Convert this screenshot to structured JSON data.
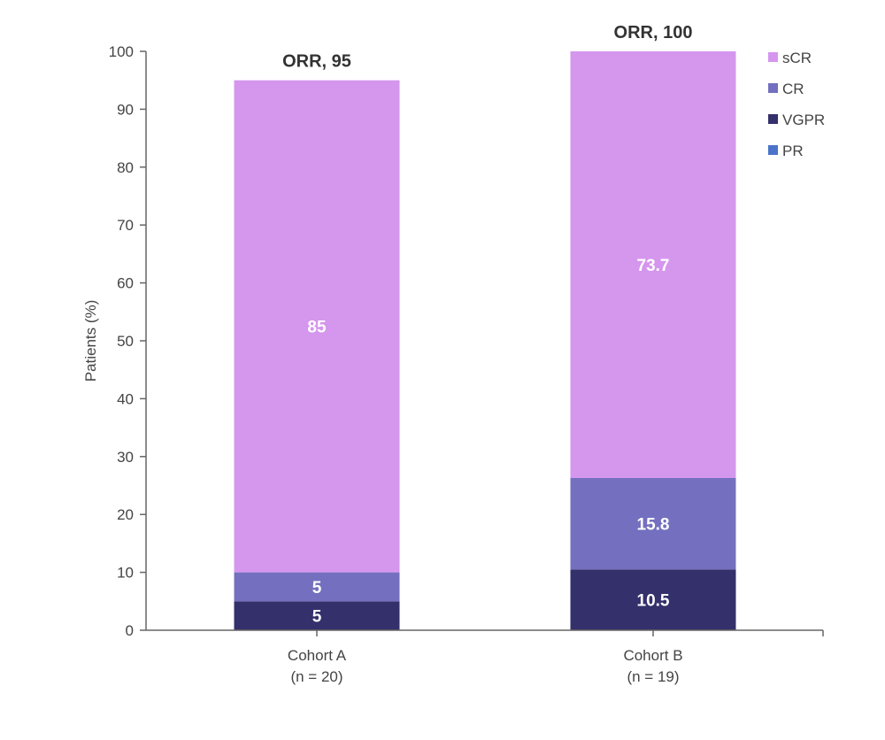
{
  "chart_data": {
    "type": "bar",
    "stacked": true,
    "title": "",
    "xlabel": "",
    "ylabel": "Patients (%)",
    "ylim": [
      0,
      100
    ],
    "yticks": [
      0,
      10,
      20,
      30,
      40,
      50,
      60,
      70,
      80,
      90,
      100
    ],
    "categories": [
      "Cohort A",
      "Cohort B"
    ],
    "category_sublabels": [
      "(n = 20)",
      "(n = 19)"
    ],
    "series": [
      {
        "name": "PR",
        "color": "#4a74c9",
        "values": [
          0,
          0
        ]
      },
      {
        "name": "VGPR",
        "color": "#34306b",
        "values": [
          5,
          10.5
        ]
      },
      {
        "name": "CR",
        "color": "#7470bf",
        "values": [
          5,
          15.8
        ]
      },
      {
        "name": "sCR",
        "color": "#d596ee",
        "values": [
          85,
          73.7
        ]
      }
    ],
    "legend_order": [
      "sCR",
      "CR",
      "VGPR",
      "PR"
    ],
    "legend_position": "top-right",
    "annotations": [
      "ORR, 95",
      "ORR, 100"
    ],
    "grid": false
  }
}
